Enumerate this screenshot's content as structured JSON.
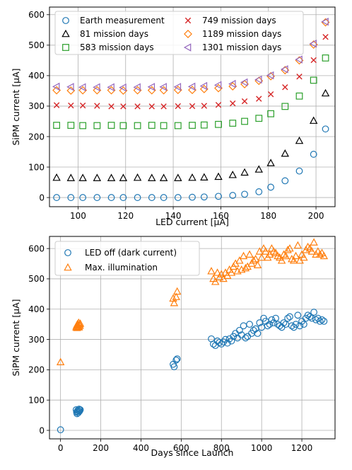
{
  "chart_data": [
    {
      "type": "scatter",
      "xlabel": "LED current [μA]",
      "ylabel": "SiPM current [μA]",
      "xlim": [
        88,
        208
      ],
      "ylim": [
        -30,
        625
      ],
      "xticks": [
        100,
        120,
        140,
        160,
        180,
        200
      ],
      "yticks": [
        0,
        100,
        200,
        300,
        400,
        500,
        600
      ],
      "grid": true,
      "legend_position": "top-left",
      "x": [
        91,
        97,
        102,
        108,
        114,
        119,
        125,
        131,
        136,
        142,
        148,
        153,
        159,
        165,
        170,
        176,
        181,
        187,
        193,
        199,
        204
      ],
      "series": [
        {
          "name": "Earth measurement",
          "marker": "circle",
          "color": "#1f77b4",
          "values": [
            0,
            0,
            0,
            0,
            0,
            0,
            0,
            0,
            0,
            0,
            1,
            2,
            4,
            7,
            11,
            19,
            34,
            55,
            87,
            142,
            225
          ]
        },
        {
          "name": "81 mission days",
          "marker": "triangle-up",
          "color": "#000000",
          "values": [
            65,
            64,
            64,
            64,
            64,
            64,
            65,
            64,
            64,
            64,
            65,
            66,
            68,
            74,
            82,
            92,
            113,
            144,
            186,
            252,
            342
          ]
        },
        {
          "name": "583 mission days",
          "marker": "square",
          "color": "#2ca02c",
          "values": [
            237,
            237,
            236,
            236,
            237,
            236,
            236,
            237,
            236,
            236,
            237,
            238,
            240,
            244,
            250,
            260,
            275,
            299,
            333,
            385,
            458
          ]
        },
        {
          "name": "749 mission days",
          "marker": "x",
          "color": "#d62728",
          "values": [
            303,
            302,
            302,
            301,
            299,
            299,
            299,
            299,
            299,
            300,
            300,
            301,
            304,
            309,
            316,
            324,
            339,
            362,
            397,
            451,
            527
          ]
        },
        {
          "name": "1189 mission days",
          "marker": "diamond",
          "color": "#ff7f0e",
          "values": [
            352,
            351,
            352,
            352,
            352,
            351,
            352,
            352,
            352,
            353,
            353,
            356,
            359,
            365,
            372,
            383,
            398,
            418,
            450,
            502,
            575
          ]
        },
        {
          "name": "1301 mission days",
          "marker": "triangle-left",
          "color": "#9467bd",
          "values": [
            364,
            363,
            362,
            362,
            362,
            361,
            362,
            363,
            363,
            363,
            364,
            366,
            369,
            373,
            378,
            387,
            401,
            421,
            453,
            505,
            577
          ]
        }
      ]
    },
    {
      "type": "scatter",
      "xlabel": "Days since Launch",
      "ylabel": "SiPM current [μA]",
      "xlim": [
        -55,
        1365
      ],
      "ylim": [
        -28,
        640
      ],
      "xticks": [
        0,
        200,
        400,
        600,
        800,
        1000,
        1200
      ],
      "yticks": [
        0,
        100,
        200,
        300,
        400,
        500,
        600
      ],
      "grid": true,
      "legend_position": "top-left",
      "series": [
        {
          "name": "LED off (dark current)",
          "marker": "circle",
          "color": "#1f77b4",
          "x": [
            0,
            78,
            80,
            82,
            84,
            86,
            88,
            90,
            92,
            94,
            96,
            98,
            560,
            565,
            575,
            580,
            750,
            760,
            770,
            780,
            790,
            800,
            810,
            820,
            830,
            840,
            850,
            860,
            870,
            880,
            890,
            900,
            910,
            920,
            930,
            940,
            950,
            960,
            970,
            980,
            990,
            1000,
            1010,
            1020,
            1030,
            1040,
            1050,
            1060,
            1070,
            1080,
            1090,
            1100,
            1110,
            1120,
            1130,
            1140,
            1150,
            1160,
            1170,
            1180,
            1190,
            1200,
            1210,
            1220,
            1230,
            1240,
            1250,
            1260,
            1270,
            1280,
            1290,
            1300,
            1310
          ],
          "y": [
            2,
            68,
            60,
            55,
            62,
            66,
            58,
            64,
            70,
            63,
            67,
            68,
            218,
            210,
            232,
            236,
            302,
            285,
            280,
            295,
            290,
            285,
            292,
            300,
            288,
            302,
            295,
            310,
            320,
            305,
            330,
            315,
            345,
            305,
            310,
            350,
            320,
            330,
            335,
            320,
            355,
            340,
            370,
            360,
            345,
            350,
            365,
            355,
            370,
            350,
            345,
            340,
            355,
            350,
            370,
            375,
            345,
            340,
            350,
            380,
            345,
            360,
            350,
            370,
            380,
            375,
            370,
            390,
            365,
            370,
            360,
            365,
            360
          ]
        },
        {
          "name": "Max. illumination",
          "marker": "triangle-up",
          "color": "#ff7f0e",
          "x": [
            0,
            78,
            80,
            82,
            84,
            86,
            88,
            90,
            92,
            94,
            96,
            98,
            560,
            565,
            575,
            580,
            750,
            760,
            770,
            780,
            790,
            800,
            810,
            820,
            830,
            840,
            850,
            860,
            870,
            880,
            890,
            900,
            910,
            920,
            930,
            940,
            950,
            960,
            970,
            980,
            990,
            1000,
            1010,
            1020,
            1030,
            1040,
            1050,
            1060,
            1070,
            1080,
            1090,
            1100,
            1110,
            1120,
            1130,
            1140,
            1150,
            1160,
            1170,
            1180,
            1190,
            1200,
            1210,
            1220,
            1230,
            1240,
            1250,
            1260,
            1270,
            1280,
            1290,
            1300,
            1310
          ],
          "y": [
            225,
            340,
            345,
            338,
            350,
            342,
            347,
            355,
            340,
            350,
            345,
            352,
            435,
            420,
            440,
            458,
            525,
            500,
            490,
            520,
            505,
            515,
            500,
            520,
            510,
            530,
            520,
            540,
            550,
            525,
            560,
            530,
            575,
            535,
            540,
            580,
            550,
            560,
            565,
            545,
            590,
            570,
            600,
            590,
            570,
            580,
            600,
            590,
            585,
            575,
            570,
            560,
            580,
            575,
            595,
            600,
            565,
            560,
            575,
            610,
            560,
            580,
            570,
            595,
            605,
            600,
            590,
            620,
            580,
            590,
            580,
            585,
            575
          ]
        }
      ]
    }
  ]
}
